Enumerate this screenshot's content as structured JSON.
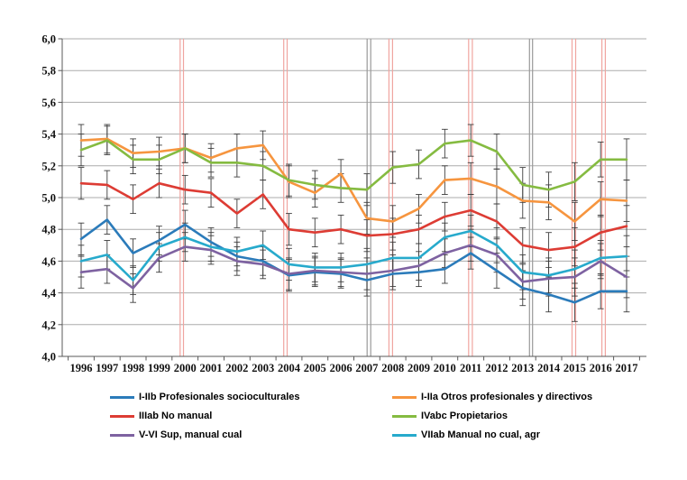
{
  "figure": {
    "background_color": "#ffffff",
    "gridline_color": "#ababab",
    "axis_color": "#595959",
    "error_bar_color": "#3d3d3d"
  },
  "chart_data": {
    "type": "line",
    "title": "",
    "xlabel": "",
    "ylabel": "",
    "x": [
      1996,
      1997,
      1998,
      1999,
      2000,
      2001,
      2002,
      2003,
      2004,
      2005,
      2006,
      2007,
      2008,
      2009,
      2010,
      2011,
      2012,
      2013,
      2014,
      2015,
      2016,
      2017
    ],
    "ylim": [
      4.0,
      6.0
    ],
    "ytick_step": 0.2,
    "ytick_labels": [
      "6,0",
      "5,8",
      "5,6",
      "5,4",
      "5,2",
      "5,0",
      "4,8",
      "4,6",
      "4,4",
      "4,2",
      "4,0"
    ],
    "grid": true,
    "legend_position": "bottom",
    "series": [
      {
        "name": "I-IIb Profesionales socioculturales",
        "color": "#2b7bba",
        "values": [
          4.74,
          4.86,
          4.65,
          4.73,
          4.83,
          4.72,
          4.63,
          4.6,
          4.51,
          4.53,
          4.52,
          4.48,
          4.52,
          4.53,
          4.55,
          4.65,
          4.54,
          4.43,
          4.39,
          4.34,
          4.41,
          4.41
        ]
      },
      {
        "name": "I-IIa Otros profesionales y directivos",
        "color": "#f6953f",
        "values": [
          5.36,
          5.37,
          5.28,
          5.29,
          5.31,
          5.25,
          5.31,
          5.33,
          5.1,
          5.03,
          5.15,
          4.87,
          4.85,
          4.93,
          5.11,
          5.12,
          5.07,
          4.98,
          4.97,
          4.85,
          4.99,
          4.98
        ]
      },
      {
        "name": "IIIab No manual",
        "color": "#dd3c34",
        "values": [
          5.09,
          5.08,
          4.99,
          5.09,
          5.05,
          5.03,
          4.9,
          5.02,
          4.8,
          4.78,
          4.8,
          4.76,
          4.77,
          4.8,
          4.88,
          4.92,
          4.85,
          4.7,
          4.67,
          4.69,
          4.78,
          4.82
        ]
      },
      {
        "name": "IVabc Propietarios",
        "color": "#85bb41",
        "values": [
          5.3,
          5.36,
          5.24,
          5.24,
          5.31,
          5.22,
          5.22,
          5.2,
          5.11,
          5.08,
          5.06,
          5.05,
          5.19,
          5.21,
          5.34,
          5.36,
          5.29,
          5.08,
          5.05,
          5.1,
          5.24,
          5.24
        ]
      },
      {
        "name": "V-VI Sup, manual cual",
        "color": "#7e62a1",
        "values": [
          4.53,
          4.55,
          4.43,
          4.62,
          4.69,
          4.67,
          4.6,
          4.58,
          4.52,
          4.54,
          4.53,
          4.52,
          4.54,
          4.57,
          4.65,
          4.7,
          4.64,
          4.47,
          4.49,
          4.5,
          4.6,
          4.5
        ]
      },
      {
        "name": "VIIab Manual no cual, agr",
        "color": "#27aacc",
        "values": [
          4.6,
          4.64,
          4.48,
          4.69,
          4.75,
          4.69,
          4.66,
          4.7,
          4.58,
          4.56,
          4.56,
          4.58,
          4.62,
          4.62,
          4.75,
          4.79,
          4.7,
          4.53,
          4.51,
          4.55,
          4.62,
          4.63
        ]
      }
    ],
    "error_bars_per_year": [
      0.1,
      0.09,
      0.09,
      0.09,
      0.09,
      0.09,
      0.09,
      0.09,
      0.1,
      0.09,
      0.09,
      0.1,
      0.1,
      0.09,
      0.09,
      0.1,
      0.11,
      0.11,
      0.11,
      0.12,
      0.11,
      0.13
    ],
    "event_lines": [
      {
        "year": 1999.81,
        "kind": "pink"
      },
      {
        "year": 1999.94,
        "kind": "pink"
      },
      {
        "year": 2003.8,
        "kind": "pink"
      },
      {
        "year": 2003.93,
        "kind": "pink"
      },
      {
        "year": 2007.01,
        "kind": "gray"
      },
      {
        "year": 2007.15,
        "kind": "gray"
      },
      {
        "year": 2007.85,
        "kind": "pink"
      },
      {
        "year": 2007.99,
        "kind": "pink"
      },
      {
        "year": 2010.92,
        "kind": "pink"
      },
      {
        "year": 2011.06,
        "kind": "pink"
      },
      {
        "year": 2013.26,
        "kind": "gray"
      },
      {
        "year": 2013.38,
        "kind": "gray"
      },
      {
        "year": 2014.9,
        "kind": "pink"
      },
      {
        "year": 2015.04,
        "kind": "pink"
      },
      {
        "year": 2016.05,
        "kind": "pink"
      },
      {
        "year": 2016.18,
        "kind": "pink"
      }
    ],
    "event_line_colors": {
      "pink": "#f0a5a0",
      "gray": "#999999"
    }
  }
}
